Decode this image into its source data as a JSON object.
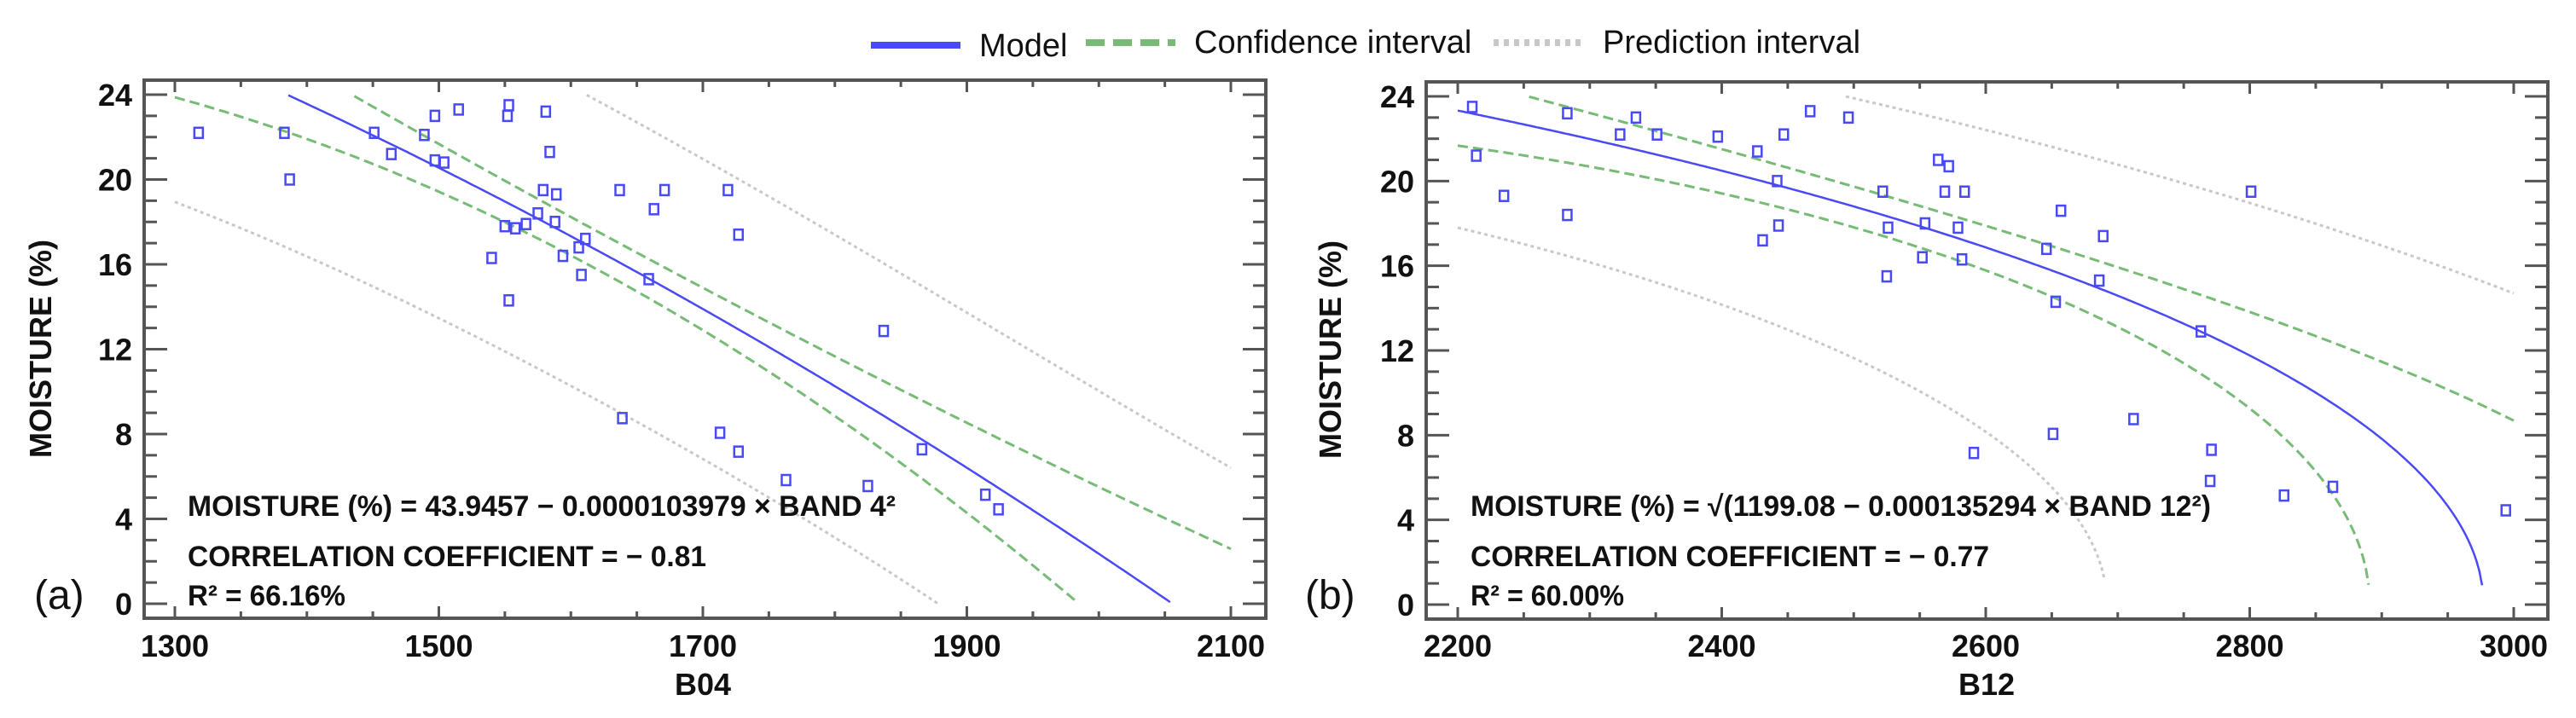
{
  "legend": {
    "items": [
      {
        "label": "Model",
        "color": "#4a4af5",
        "style": "solid"
      },
      {
        "label": "Confidence interval",
        "color": "#77bb77",
        "style": "dashed"
      },
      {
        "label": "Prediction interval",
        "color": "#c8c8c8",
        "style": "dotted"
      }
    ]
  },
  "colors": {
    "points": "#4a4af5",
    "frame": "#555555"
  },
  "chart_data": [
    {
      "type": "scatter",
      "panel_label": "(a)",
      "xlabel": "B04",
      "ylabel": "MOISTURE (%)",
      "xlim": [
        1300,
        2100
      ],
      "ylim": [
        0,
        24
      ],
      "xticks": [
        "1300",
        "1500",
        "1700",
        "1900",
        "2100"
      ],
      "yticks": [
        "0",
        "4",
        "8",
        "12",
        "16",
        "20",
        "24"
      ],
      "equation": "MOISTURE (%)  = 43.9457 − 0.0000103979 × BAND 4²",
      "correlation": "CORRELATION  COEFFICIENT = − 0.81",
      "r2": "R² = 66.16%",
      "model": {
        "form": "y = a - b*x^2",
        "a": 43.9457,
        "b": 1.03979e-05
      },
      "bands": {
        "space": "y",
        "ci_base": 0.9,
        "ci_curv": 1.56e-05,
        "x_center": 1620,
        "pi_sigma": 7.0
      },
      "points": [
        [
          1318,
          22.2
        ],
        [
          1383,
          22.2
        ],
        [
          1387,
          20.0
        ],
        [
          1451,
          22.2
        ],
        [
          1464,
          21.2
        ],
        [
          1489,
          22.1
        ],
        [
          1497,
          23.0
        ],
        [
          1497,
          20.9
        ],
        [
          1504,
          20.8
        ],
        [
          1515,
          23.3
        ],
        [
          1540,
          16.3
        ],
        [
          1550,
          17.8
        ],
        [
          1552,
          23.0
        ],
        [
          1553,
          23.5
        ],
        [
          1553,
          14.3
        ],
        [
          1558,
          17.7
        ],
        [
          1566,
          17.9
        ],
        [
          1575,
          18.4
        ],
        [
          1579,
          19.5
        ],
        [
          1581,
          23.2
        ],
        [
          1584,
          21.3
        ],
        [
          1589,
          19.3
        ],
        [
          1588,
          18.0
        ],
        [
          1594,
          16.4
        ],
        [
          1606,
          16.8
        ],
        [
          1608,
          15.5
        ],
        [
          1611,
          17.2
        ],
        [
          1637,
          19.5
        ],
        [
          1639,
          8.75
        ],
        [
          1659,
          15.3
        ],
        [
          1663,
          18.6
        ],
        [
          1671,
          19.5
        ],
        [
          1713,
          8.06
        ],
        [
          1719,
          19.5
        ],
        [
          1727,
          17.4
        ],
        [
          1727,
          7.17
        ],
        [
          1763,
          5.83
        ],
        [
          1825,
          5.55
        ],
        [
          1837,
          12.86
        ],
        [
          1866,
          7.28
        ],
        [
          1914,
          5.14
        ],
        [
          1924,
          4.45
        ]
      ]
    },
    {
      "type": "scatter",
      "panel_label": "(b)",
      "xlabel": "B12",
      "ylabel": "MOISTURE (%)",
      "xlim": [
        2200,
        3000
      ],
      "ylim": [
        0,
        24
      ],
      "xticks": [
        "2200",
        "2400",
        "2600",
        "2800",
        "3000"
      ],
      "yticks": [
        "0",
        "4",
        "8",
        "12",
        "16",
        "20",
        "24"
      ],
      "equation": "MOISTURE (%)  = √(1199.08 − 0.000135294 × BAND 12²)",
      "correlation": "CORRELATION  COEFFICIENT = − 0.77",
      "r2": "R² = 60.00%",
      "model": {
        "form": "y = sqrt(a - b*x^2)",
        "a": 1199.08,
        "b": 0.000135294
      },
      "bands": {
        "space": "y_squared",
        "ci_base": 35,
        "ci_curv": 0.000305,
        "x_center": 2560,
        "pi_sigma": 215
      },
      "points": [
        [
          2211,
          23.5
        ],
        [
          2214,
          21.2
        ],
        [
          2235,
          19.3
        ],
        [
          2283,
          23.2
        ],
        [
          2283,
          18.4
        ],
        [
          2323,
          22.2
        ],
        [
          2335,
          23.0
        ],
        [
          2351,
          22.2
        ],
        [
          2397,
          22.1
        ],
        [
          2427,
          21.4
        ],
        [
          2431,
          17.2
        ],
        [
          2442,
          20.0
        ],
        [
          2443,
          17.9
        ],
        [
          2447,
          22.2
        ],
        [
          2467,
          23.3
        ],
        [
          2496,
          23.0
        ],
        [
          2522,
          19.5
        ],
        [
          2525,
          15.5
        ],
        [
          2526,
          17.8
        ],
        [
          2552,
          16.4
        ],
        [
          2554,
          18.0
        ],
        [
          2564,
          21.0
        ],
        [
          2569,
          19.5
        ],
        [
          2572,
          20.7
        ],
        [
          2579,
          17.8
        ],
        [
          2582,
          16.3
        ],
        [
          2584,
          19.5
        ],
        [
          2591,
          7.16
        ],
        [
          2646,
          16.8
        ],
        [
          2651,
          8.06
        ],
        [
          2653,
          14.3
        ],
        [
          2657,
          18.6
        ],
        [
          2686,
          15.3
        ],
        [
          2689,
          17.4
        ],
        [
          2712,
          8.76
        ],
        [
          2763,
          12.9
        ],
        [
          2770,
          5.84
        ],
        [
          2771,
          7.31
        ],
        [
          2801,
          19.5
        ],
        [
          2826,
          5.15
        ],
        [
          2863,
          5.56
        ],
        [
          2994,
          4.45
        ]
      ]
    }
  ]
}
